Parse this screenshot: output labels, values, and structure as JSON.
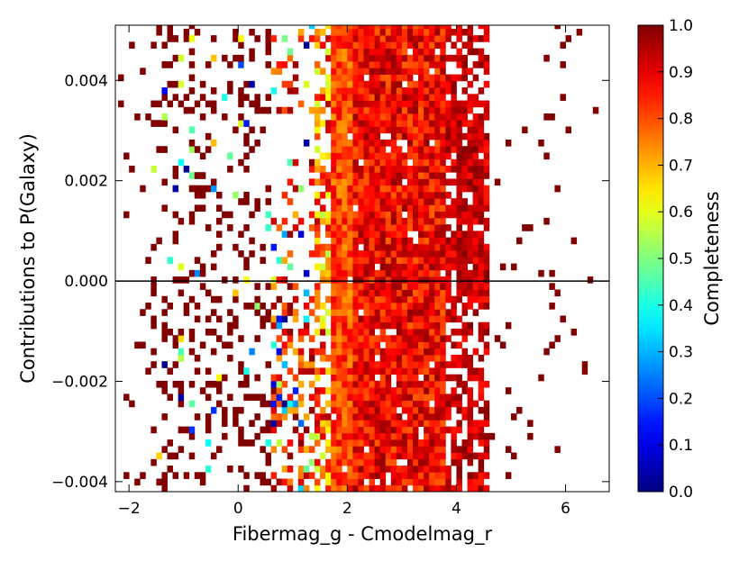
{
  "chart_data": {
    "type": "heatmap",
    "xlabel": "Fibermag_g - Cmodelmag_r",
    "ylabel": "Contributions to P(Galaxy)",
    "xlim": [
      -2.25,
      6.8
    ],
    "ylim": [
      -0.0042,
      0.0051
    ],
    "x_ticks": [
      -2,
      0,
      2,
      4,
      6
    ],
    "x_tick_labels": [
      "−2",
      "0",
      "2",
      "4",
      "6"
    ],
    "y_ticks": [
      -0.004,
      -0.002,
      0.0,
      0.002,
      0.004
    ],
    "y_tick_labels": [
      "−0.004",
      "−0.002",
      "0.000",
      "0.002",
      "0.004"
    ],
    "reference_line_y": 0.0,
    "grid": false,
    "colormap": "jet",
    "colorbar": {
      "label": "Completeness",
      "range": [
        0.0,
        1.0
      ],
      "ticks": [
        0.0,
        0.1,
        0.2,
        0.3,
        0.4,
        0.5,
        0.6,
        0.7,
        0.8,
        0.9,
        1.0
      ],
      "tick_labels": [
        "0.0",
        "0.1",
        "0.2",
        "0.3",
        "0.4",
        "0.5",
        "0.6",
        "0.7",
        "0.8",
        "0.9",
        "1.0"
      ]
    },
    "bins": {
      "x_width": 0.1,
      "y_height": 0.00013
    },
    "density_description": "Dense vertical band of completeness ~0.85-0.95 between x=1.7 and x=4.5 across all y; sparse scatter elsewhere, mostly completeness 1.0 with occasional low values near x=0-1.7.",
    "value_regions": [
      {
        "x_range": [
          1.7,
          2.1
        ],
        "y_range": [
          -0.0042,
          0.0051
        ],
        "completeness": 0.8
      },
      {
        "x_range": [
          2.1,
          3.8
        ],
        "y_range": [
          -0.0042,
          0.0051
        ],
        "completeness": 0.9
      },
      {
        "x_range": [
          3.8,
          4.6
        ],
        "y_range": [
          -0.0005,
          0.0035
        ],
        "completeness": 0.95
      },
      {
        "x_range": [
          0.8,
          1.7
        ],
        "y_range": [
          -0.0042,
          0.0
        ],
        "completeness": 0.75
      },
      {
        "x_range": [
          -1.5,
          0.6
        ],
        "y_range": [
          -0.0042,
          0.0051
        ],
        "completeness": 1.0
      }
    ]
  },
  "colors": {
    "background": "#ffffff",
    "axis": "#000000",
    "colormap_stops": [
      "#00007f",
      "#0000ff",
      "#007fff",
      "#00ffff",
      "#7fff7f",
      "#ffff00",
      "#ff7f00",
      "#ff0000",
      "#7f0000"
    ]
  }
}
